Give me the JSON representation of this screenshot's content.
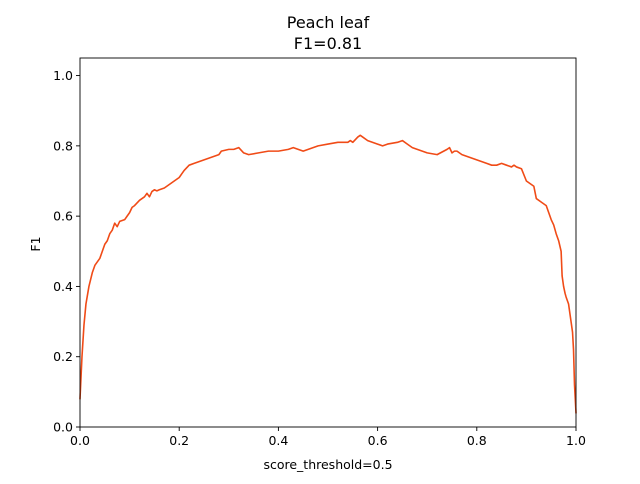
{
  "chart_data": {
    "type": "line",
    "title": "Peach leaf",
    "subtitle": "F1=0.81",
    "xlabel": "score_threshold=0.5",
    "ylabel": "F1",
    "xlim": [
      0.0,
      1.0
    ],
    "ylim": [
      0.0,
      1.05
    ],
    "x_ticks": [
      "0.0",
      "0.2",
      "0.4",
      "0.6",
      "0.8",
      "1.0"
    ],
    "y_ticks": [
      "0.0",
      "0.2",
      "0.4",
      "0.6",
      "0.8",
      "1.0"
    ],
    "grid": false,
    "line_color": "#f04b17",
    "series": [
      {
        "x": [
          0.0,
          0.004,
          0.008,
          0.012,
          0.018,
          0.025,
          0.03,
          0.04,
          0.05,
          0.055,
          0.06,
          0.065,
          0.07,
          0.075,
          0.08,
          0.09,
          0.095,
          0.1,
          0.105,
          0.11,
          0.12,
          0.13,
          0.135,
          0.14,
          0.145,
          0.15,
          0.155,
          0.16,
          0.17,
          0.18,
          0.19,
          0.2,
          0.205,
          0.21,
          0.22,
          0.23,
          0.24,
          0.25,
          0.26,
          0.27,
          0.28,
          0.285,
          0.3,
          0.31,
          0.32,
          0.33,
          0.34,
          0.36,
          0.38,
          0.4,
          0.42,
          0.43,
          0.44,
          0.45,
          0.47,
          0.48,
          0.5,
          0.52,
          0.54,
          0.545,
          0.55,
          0.56,
          0.565,
          0.57,
          0.58,
          0.6,
          0.61,
          0.62,
          0.64,
          0.65,
          0.66,
          0.67,
          0.68,
          0.7,
          0.72,
          0.74,
          0.745,
          0.75,
          0.755,
          0.76,
          0.77,
          0.79,
          0.8,
          0.82,
          0.83,
          0.84,
          0.85,
          0.86,
          0.87,
          0.875,
          0.88,
          0.89,
          0.9,
          0.905,
          0.91,
          0.915,
          0.92,
          0.93,
          0.94,
          0.945,
          0.95,
          0.955,
          0.96,
          0.965,
          0.97,
          0.972,
          0.975,
          0.978,
          0.98,
          0.985,
          0.99,
          0.993,
          0.995,
          0.997,
          1.0
        ],
        "y": [
          0.08,
          0.2,
          0.29,
          0.35,
          0.4,
          0.44,
          0.46,
          0.48,
          0.52,
          0.53,
          0.55,
          0.56,
          0.58,
          0.57,
          0.585,
          0.59,
          0.6,
          0.61,
          0.625,
          0.63,
          0.645,
          0.655,
          0.665,
          0.655,
          0.67,
          0.675,
          0.672,
          0.675,
          0.68,
          0.69,
          0.7,
          0.71,
          0.72,
          0.73,
          0.745,
          0.75,
          0.755,
          0.76,
          0.765,
          0.77,
          0.775,
          0.785,
          0.79,
          0.79,
          0.795,
          0.78,
          0.775,
          0.78,
          0.785,
          0.785,
          0.79,
          0.795,
          0.79,
          0.785,
          0.795,
          0.8,
          0.805,
          0.81,
          0.81,
          0.815,
          0.81,
          0.825,
          0.83,
          0.825,
          0.815,
          0.805,
          0.8,
          0.805,
          0.81,
          0.815,
          0.805,
          0.795,
          0.79,
          0.78,
          0.775,
          0.79,
          0.795,
          0.78,
          0.785,
          0.785,
          0.775,
          0.765,
          0.76,
          0.75,
          0.745,
          0.745,
          0.75,
          0.745,
          0.74,
          0.745,
          0.74,
          0.735,
          0.7,
          0.695,
          0.69,
          0.685,
          0.65,
          0.64,
          0.63,
          0.61,
          0.59,
          0.575,
          0.55,
          0.53,
          0.5,
          0.43,
          0.4,
          0.38,
          0.37,
          0.35,
          0.3,
          0.27,
          0.22,
          0.12,
          0.04
        ]
      }
    ]
  }
}
